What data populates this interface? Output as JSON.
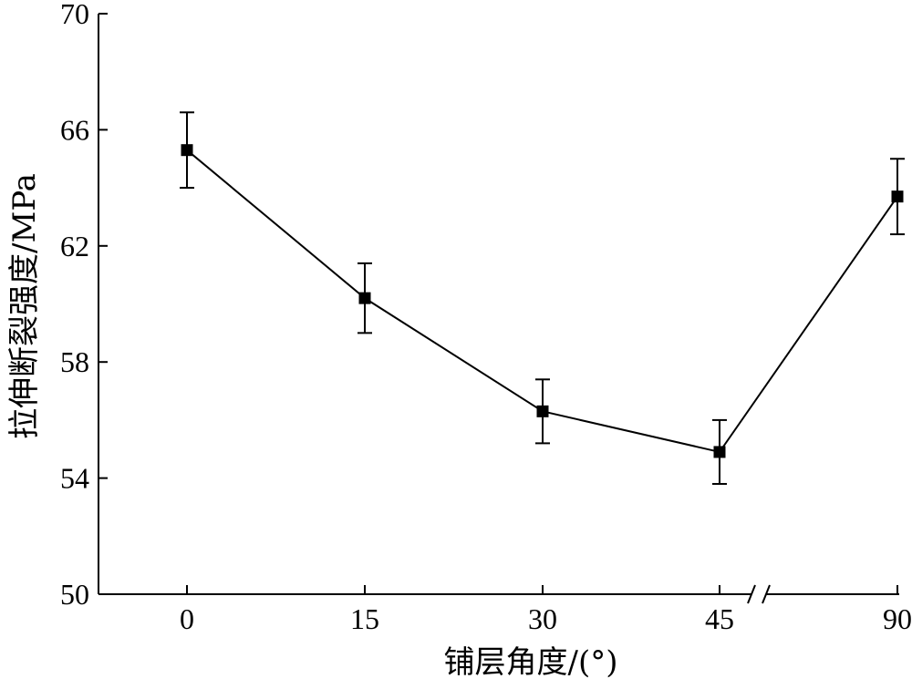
{
  "chart_data": {
    "type": "line",
    "xlabel": "铺层角度/(°)",
    "ylabel": "拉伸断裂强度/MPa",
    "categories": [
      "0",
      "15",
      "30",
      "45",
      "90"
    ],
    "x": [
      0,
      15,
      30,
      45,
      90
    ],
    "x_axis_break": "between 45 and 90",
    "ylim": [
      50,
      70
    ],
    "yticks": [
      50,
      54,
      58,
      62,
      66,
      70
    ],
    "grid": false,
    "legend": "none",
    "series": [
      {
        "values": [
          65.3,
          60.2,
          56.3,
          54.9,
          63.7
        ],
        "error_low": [
          64.0,
          59.0,
          55.2,
          53.8,
          62.4
        ],
        "error_high": [
          66.6,
          61.4,
          57.4,
          56.0,
          65.0
        ],
        "marker": "square",
        "color": "#000000"
      }
    ]
  }
}
